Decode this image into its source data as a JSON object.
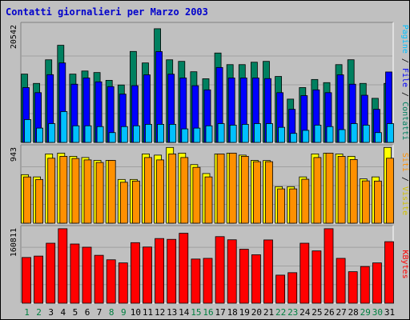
{
  "title": "Contatti giornalieri per Marzo 2003",
  "colors": {
    "background": "#c0c0c0",
    "title": "#0000cc",
    "pages": "#00c0ff",
    "files": "#0000ff",
    "hits": "#008060",
    "sites": "#ff9000",
    "visits": "#ffff00",
    "kbytes": "#ff0000",
    "weekend_label": "#008040",
    "weekday_label": "#000000"
  },
  "chart_data": [
    {
      "type": "bar",
      "title": "Contatti giornalieri per Marzo 2003",
      "categories": [
        "1",
        "2",
        "3",
        "4",
        "5",
        "6",
        "7",
        "8",
        "9",
        "10",
        "11",
        "12",
        "13",
        "14",
        "15",
        "16",
        "17",
        "18",
        "19",
        "20",
        "21",
        "22",
        "23",
        "24",
        "25",
        "26",
        "27",
        "28",
        "29",
        "30",
        "31"
      ],
      "weekend_days": [
        "1",
        "2",
        "8",
        "9",
        "15",
        "16",
        "22",
        "23",
        "29",
        "30"
      ],
      "ymax_label": "20542",
      "ylim": [
        0,
        20542
      ],
      "grid": true,
      "legend": [
        "Pagine",
        "File",
        "Contatti"
      ],
      "series": [
        {
          "name": "Contatti",
          "values": [
            12180,
            10520,
            14730,
            17320,
            12180,
            12730,
            12460,
            11070,
            10240,
            16220,
            14170,
            20270,
            14730,
            14450,
            12600,
            11350,
            15940,
            13870,
            13870,
            14300,
            14450,
            11760,
            7720,
            9780,
            11220,
            10660,
            13870,
            14740,
            10520,
            7860,
            10520
          ]
        },
        {
          "name": "File",
          "values": [
            9780,
            8870,
            12080,
            14170,
            10380,
            11490,
            10800,
            9950,
            8610,
            10120,
            12050,
            16190,
            12160,
            11490,
            10110,
            9370,
            13360,
            11490,
            11490,
            11490,
            11380,
            8870,
            5900,
            8340,
            9370,
            8870,
            12050,
            10380,
            8410,
            5900,
            12560
          ]
        },
        {
          "name": "Pagine",
          "values": [
            4070,
            2550,
            3350,
            5500,
            2960,
            2960,
            2820,
            1750,
            2820,
            2960,
            3220,
            3220,
            3220,
            2410,
            2550,
            2960,
            3350,
            3080,
            3220,
            3350,
            3350,
            2690,
            1610,
            2150,
            3080,
            2820,
            2280,
            3350,
            3080,
            1750,
            3350
          ]
        }
      ]
    },
    {
      "type": "bar",
      "categories": [
        "1",
        "2",
        "3",
        "4",
        "5",
        "6",
        "7",
        "8",
        "9",
        "10",
        "11",
        "12",
        "13",
        "14",
        "15",
        "16",
        "17",
        "18",
        "19",
        "20",
        "21",
        "22",
        "23",
        "24",
        "25",
        "26",
        "27",
        "28",
        "29",
        "30",
        "31"
      ],
      "ymax_label": "943",
      "ylim": [
        0,
        943
      ],
      "grid": true,
      "legend": [
        "Siti",
        "Visite"
      ],
      "series": [
        {
          "name": "Visite",
          "values": [
            608,
            580,
            868,
            878,
            838,
            823,
            787,
            787,
            548,
            548,
            868,
            853,
            949,
            878,
            734,
            622,
            868,
            878,
            853,
            787,
            785,
            458,
            458,
            580,
            868,
            878,
            868,
            838,
            555,
            580,
            949
          ]
        },
        {
          "name": "Siti",
          "values": [
            580,
            548,
            814,
            838,
            811,
            793,
            761,
            787,
            513,
            528,
            823,
            793,
            868,
            823,
            700,
            580,
            868,
            878,
            838,
            771,
            771,
            430,
            430,
            551,
            823,
            878,
            838,
            798,
            530,
            528,
            814
          ]
        }
      ]
    },
    {
      "type": "bar",
      "categories": [
        "1",
        "2",
        "3",
        "4",
        "5",
        "6",
        "7",
        "8",
        "9",
        "10",
        "11",
        "12",
        "13",
        "14",
        "15",
        "16",
        "17",
        "18",
        "19",
        "20",
        "21",
        "22",
        "23",
        "24",
        "25",
        "26",
        "27",
        "28",
        "29",
        "30",
        "31"
      ],
      "ymax_label": "160811",
      "ylim": [
        0,
        160811
      ],
      "grid": true,
      "legend": [
        "KBytes"
      ],
      "series": [
        {
          "name": "KBytes",
          "values": [
            98700,
            101700,
            129500,
            160800,
            127800,
            120900,
            103400,
            93700,
            87000,
            130700,
            121300,
            139600,
            137800,
            151000,
            95300,
            96800,
            143700,
            136900,
            116500,
            104600,
            136600,
            60600,
            65900,
            129500,
            112900,
            160800,
            96800,
            68000,
            79200,
            87000,
            132800
          ]
        }
      ]
    }
  ]
}
